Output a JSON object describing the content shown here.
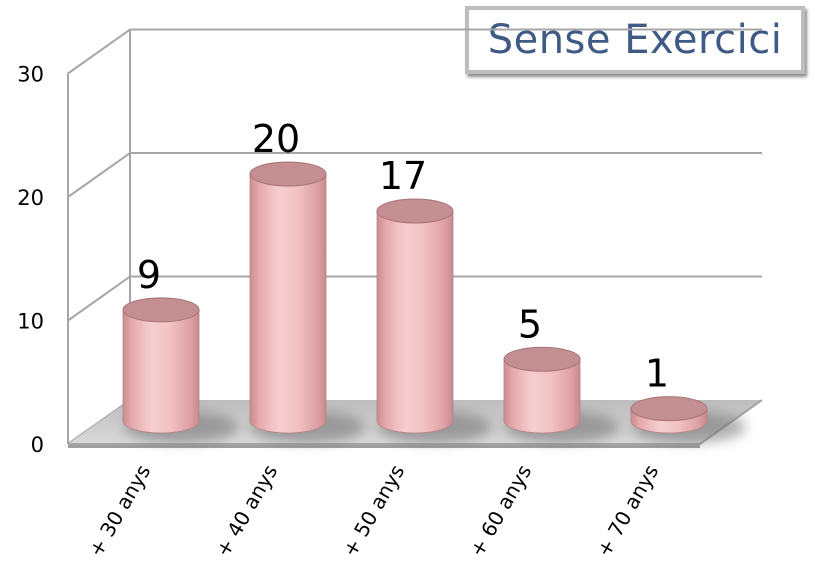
{
  "chart_data": {
    "type": "bar",
    "title": "Sense Exercici",
    "categories": [
      "+ 30 anys",
      "+ 40 anys",
      "+ 50 anys",
      "+ 60 anys",
      "+ 70 anys"
    ],
    "values": [
      9,
      20,
      17,
      5,
      1
    ],
    "ylim": [
      0,
      30
    ],
    "yticks": [
      0,
      10,
      20,
      30
    ],
    "xlabel": "",
    "ylabel": "",
    "grid": true,
    "bar_shape": "cylinder",
    "bar_color": "#e8a8ab"
  }
}
